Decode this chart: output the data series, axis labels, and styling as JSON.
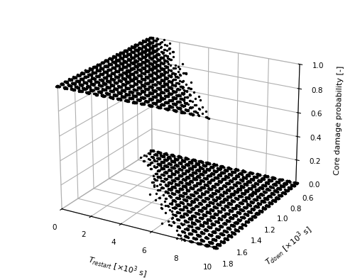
{
  "tdown_values": [
    0.6,
    0.65,
    0.7,
    0.75,
    0.8,
    0.85,
    0.9,
    0.95,
    1.0,
    1.05,
    1.1,
    1.15,
    1.2,
    1.25,
    1.3,
    1.35,
    1.4,
    1.45,
    1.5,
    1.55,
    1.6,
    1.65,
    1.7,
    1.75,
    1.8
  ],
  "trestart_values": [
    0.0,
    0.5,
    1.0,
    1.5,
    2.0,
    2.5,
    3.0,
    3.5,
    4.0,
    4.5,
    5.0,
    5.5,
    6.0,
    6.5,
    7.0,
    7.5,
    8.0,
    8.5,
    9.0,
    9.5,
    10.0
  ],
  "xlabel": "$T_{restart}$ [$\\times 10^3$ s]",
  "ylabel": "$T_{down}$ [$\\times 10^3$ s]",
  "zlabel": "Core damage probability [-]",
  "xlim": [
    0,
    10
  ],
  "ylim": [
    1.8,
    0.6
  ],
  "zlim": [
    0.0,
    1.0
  ],
  "xticks": [
    0,
    2,
    4,
    6,
    8,
    10
  ],
  "yticks": [
    0.6,
    0.8,
    1.0,
    1.2,
    1.4,
    1.6,
    1.8
  ],
  "zticks": [
    0.0,
    0.2,
    0.4,
    0.6,
    0.8,
    1.0
  ],
  "dot_color": "black",
  "dot_size": 6,
  "n_samples": 20,
  "elev": 22,
  "azim": -60,
  "seed": 42
}
